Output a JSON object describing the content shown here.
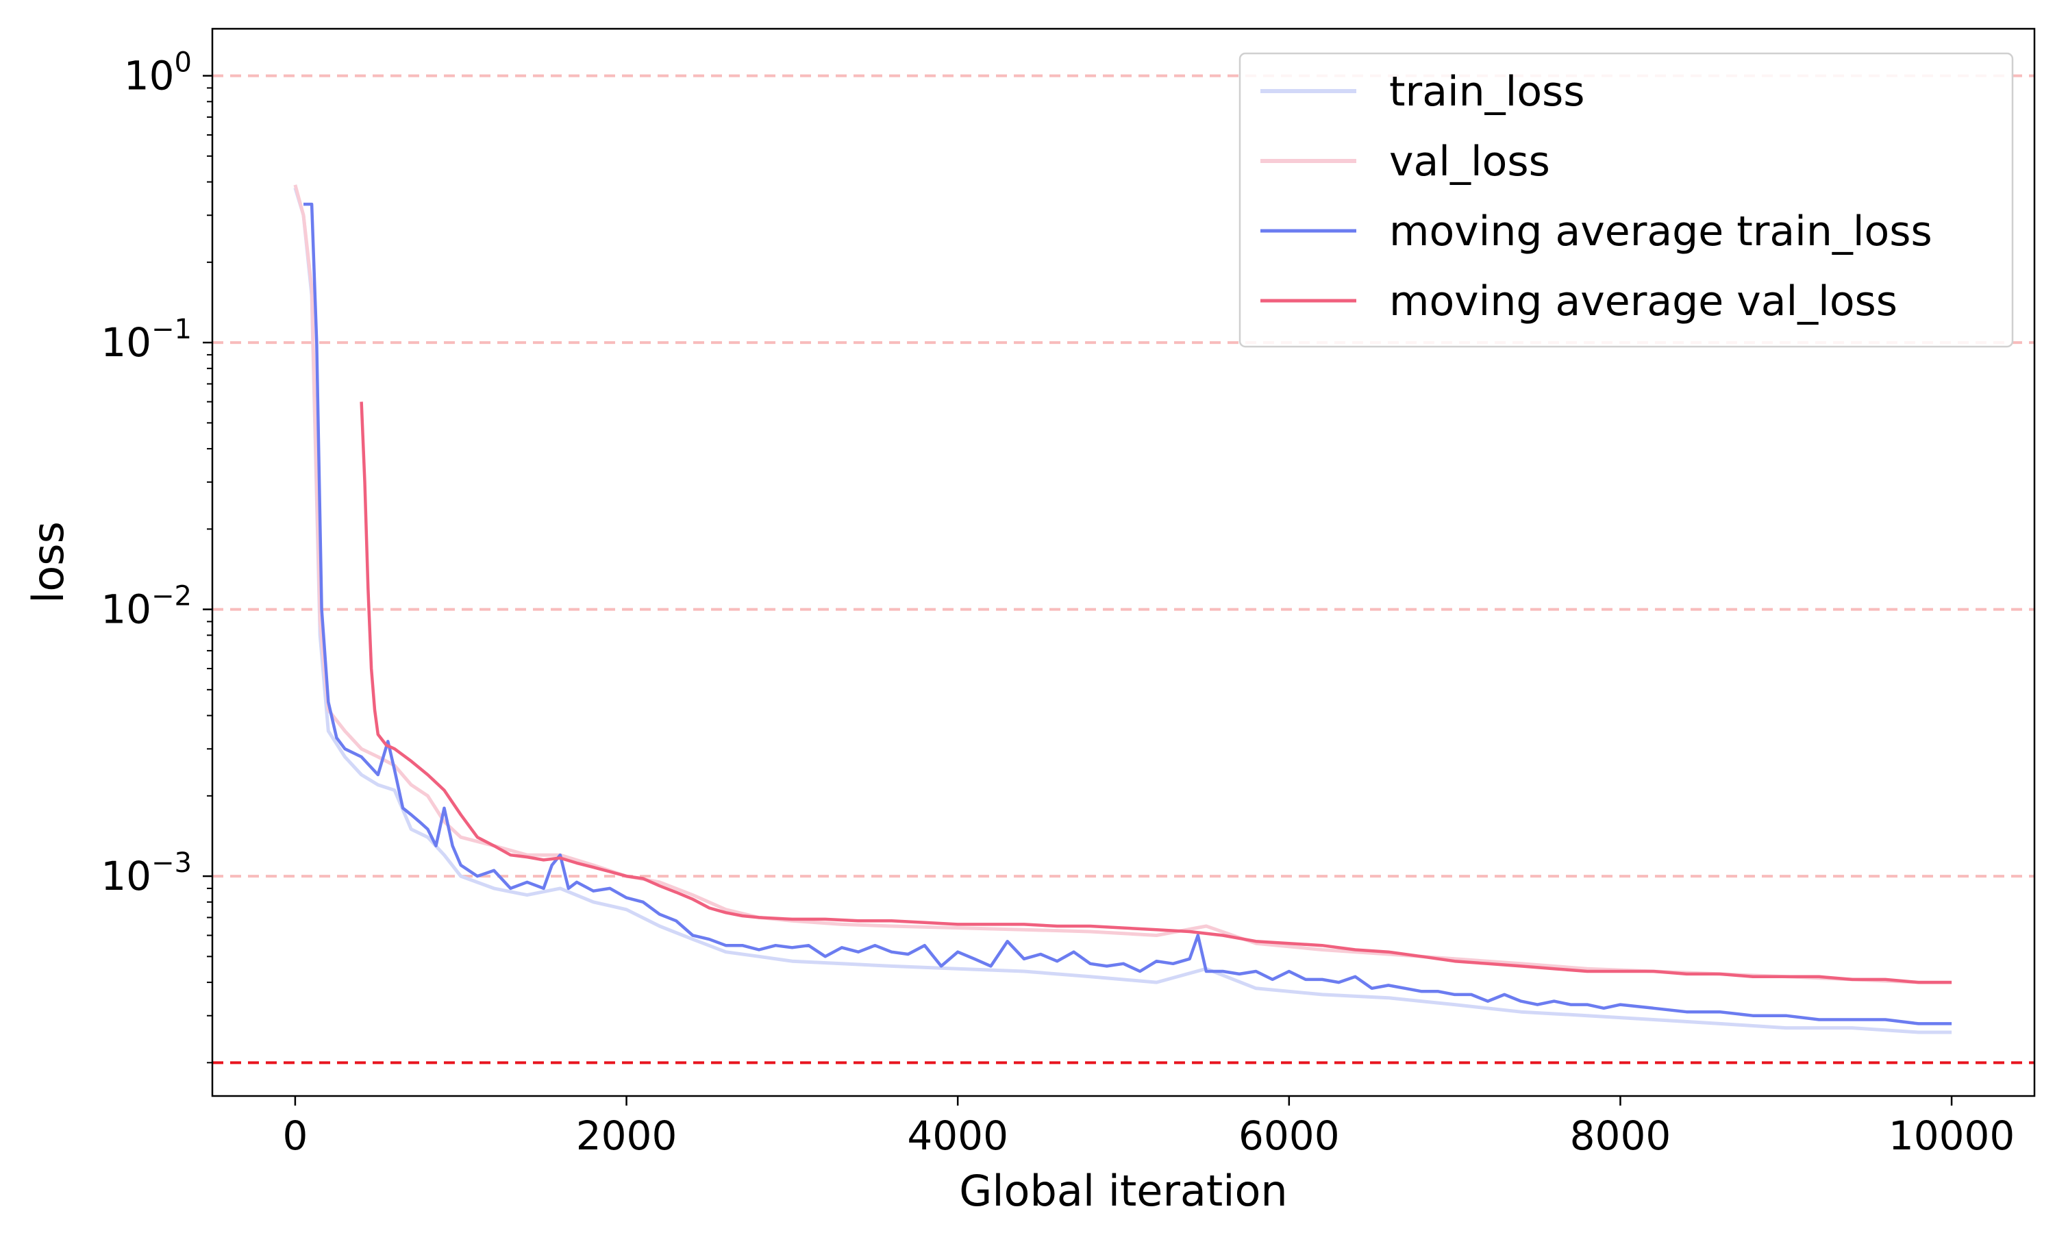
{
  "chart_data": {
    "type": "line",
    "xlabel": "Global iteration",
    "ylabel": "loss",
    "xlim": [
      -500,
      10500
    ],
    "ylim": [
      0.00015,
      1.5
    ],
    "yscale": "log",
    "x_ticks": [
      0,
      2000,
      4000,
      6000,
      8000,
      10000
    ],
    "x_tick_labels": [
      "0",
      "2000",
      "4000",
      "6000",
      "8000",
      "10000"
    ],
    "y_ticks": [
      {
        "value": 1,
        "base": "10",
        "exp": "0"
      },
      {
        "value": 0.1,
        "base": "10",
        "exp": "−1"
      },
      {
        "value": 0.01,
        "base": "10",
        "exp": "−2"
      },
      {
        "value": 0.001,
        "base": "10",
        "exp": "−3"
      }
    ],
    "grid": "horizontal dashed at decades",
    "reference_lines": [
      {
        "y": 1,
        "color": "#f8bcbc"
      },
      {
        "y": 0.1,
        "color": "#f8bcbc"
      },
      {
        "y": 0.01,
        "color": "#f8bcbc"
      },
      {
        "y": 0.001,
        "color": "#f8bcbc"
      },
      {
        "y": 0.0002,
        "color": "#e8141e"
      }
    ],
    "legend_position": "top-right",
    "series": [
      {
        "name": "train_loss",
        "color": "#d2d8f8",
        "kind": "raw",
        "x": [
          0,
          50,
          100,
          150,
          200,
          300,
          400,
          500,
          600,
          700,
          800,
          900,
          1000,
          1200,
          1400,
          1600,
          1800,
          2000,
          2200,
          2400,
          2600,
          2800,
          3000,
          3300,
          3600,
          4000,
          4400,
          4800,
          5200,
          5500,
          5800,
          6200,
          6600,
          7000,
          7400,
          7800,
          8200,
          8600,
          9000,
          9400,
          9800,
          10000
        ],
        "y": [
          0.38,
          0.3,
          0.15,
          0.008,
          0.0035,
          0.0028,
          0.0024,
          0.0022,
          0.0021,
          0.0015,
          0.0014,
          0.0012,
          0.001,
          0.0009,
          0.00085,
          0.0009,
          0.0008,
          0.00075,
          0.00065,
          0.00058,
          0.00052,
          0.0005,
          0.00048,
          0.00047,
          0.00046,
          0.00045,
          0.00044,
          0.00042,
          0.0004,
          0.00045,
          0.00038,
          0.00036,
          0.00035,
          0.00033,
          0.00031,
          0.0003,
          0.00029,
          0.00028,
          0.00027,
          0.00027,
          0.00026,
          0.00026
        ]
      },
      {
        "name": "val_loss",
        "color": "#f8ccd6",
        "kind": "raw",
        "x": [
          0,
          50,
          100,
          150,
          200,
          300,
          400,
          500,
          600,
          700,
          800,
          900,
          1000,
          1200,
          1400,
          1600,
          1800,
          2000,
          2200,
          2400,
          2600,
          2800,
          3000,
          3300,
          3600,
          4000,
          4400,
          4800,
          5200,
          5500,
          5800,
          6200,
          6600,
          7000,
          7400,
          7800,
          8200,
          8600,
          9000,
          9400,
          9800,
          10000
        ],
        "y": [
          0.39,
          0.3,
          0.16,
          0.009,
          0.0042,
          0.0035,
          0.003,
          0.0028,
          0.0026,
          0.0022,
          0.002,
          0.0016,
          0.0014,
          0.0013,
          0.0012,
          0.0012,
          0.0011,
          0.001,
          0.00095,
          0.00085,
          0.00075,
          0.0007,
          0.00068,
          0.00066,
          0.00065,
          0.00064,
          0.00063,
          0.00062,
          0.0006,
          0.00065,
          0.00056,
          0.00053,
          0.00051,
          0.00049,
          0.00047,
          0.00045,
          0.00044,
          0.00043,
          0.00042,
          0.00041,
          0.0004,
          0.0004
        ]
      },
      {
        "name": "moving average train_loss",
        "color": "#6b7cf0",
        "kind": "smoothed",
        "x": [
          50,
          100,
          130,
          160,
          200,
          250,
          300,
          400,
          500,
          560,
          600,
          650,
          700,
          750,
          800,
          850,
          900,
          950,
          1000,
          1100,
          1200,
          1300,
          1400,
          1500,
          1550,
          1600,
          1650,
          1700,
          1800,
          1900,
          2000,
          2100,
          2200,
          2300,
          2400,
          2500,
          2600,
          2700,
          2800,
          2900,
          3000,
          3100,
          3200,
          3300,
          3400,
          3500,
          3600,
          3700,
          3800,
          3900,
          4000,
          4100,
          4200,
          4300,
          4400,
          4500,
          4600,
          4700,
          4800,
          4900,
          5000,
          5100,
          5200,
          5300,
          5400,
          5450,
          5500,
          5600,
          5700,
          5800,
          5900,
          6000,
          6100,
          6200,
          6300,
          6400,
          6500,
          6600,
          6700,
          6800,
          6900,
          7000,
          7100,
          7200,
          7300,
          7400,
          7500,
          7600,
          7700,
          7800,
          7900,
          8000,
          8200,
          8400,
          8600,
          8800,
          9000,
          9200,
          9400,
          9600,
          9800,
          10000
        ],
        "y": [
          0.33,
          0.33,
          0.1,
          0.01,
          0.0045,
          0.0033,
          0.003,
          0.0028,
          0.0024,
          0.0032,
          0.0025,
          0.0018,
          0.0017,
          0.0016,
          0.0015,
          0.0013,
          0.0018,
          0.0013,
          0.0011,
          0.001,
          0.00105,
          0.0009,
          0.00095,
          0.0009,
          0.0011,
          0.0012,
          0.0009,
          0.00095,
          0.00088,
          0.0009,
          0.00083,
          0.0008,
          0.00072,
          0.00068,
          0.0006,
          0.00058,
          0.00055,
          0.00055,
          0.00053,
          0.00055,
          0.00054,
          0.00055,
          0.0005,
          0.00054,
          0.00052,
          0.00055,
          0.00052,
          0.00051,
          0.00055,
          0.00046,
          0.00052,
          0.00049,
          0.00046,
          0.00057,
          0.00049,
          0.00051,
          0.00048,
          0.00052,
          0.00047,
          0.00046,
          0.00047,
          0.00044,
          0.00048,
          0.00047,
          0.00049,
          0.0006,
          0.00044,
          0.00044,
          0.00043,
          0.00044,
          0.00041,
          0.00044,
          0.00041,
          0.00041,
          0.0004,
          0.00042,
          0.00038,
          0.00039,
          0.00038,
          0.00037,
          0.00037,
          0.00036,
          0.00036,
          0.00034,
          0.00036,
          0.00034,
          0.00033,
          0.00034,
          0.00033,
          0.00033,
          0.00032,
          0.00033,
          0.00032,
          0.00031,
          0.00031,
          0.0003,
          0.0003,
          0.00029,
          0.00029,
          0.00029,
          0.00028,
          0.00028
        ]
      },
      {
        "name": "moving average  val_loss",
        "color": "#f0607e",
        "kind": "smoothed",
        "x": [
          400,
          420,
          440,
          460,
          480,
          500,
          550,
          600,
          700,
          800,
          900,
          1000,
          1100,
          1200,
          1300,
          1400,
          1500,
          1600,
          1700,
          1800,
          1900,
          2000,
          2100,
          2200,
          2300,
          2400,
          2500,
          2600,
          2700,
          2800,
          3000,
          3200,
          3400,
          3600,
          3800,
          4000,
          4200,
          4400,
          4600,
          4800,
          5000,
          5200,
          5400,
          5600,
          5800,
          6000,
          6200,
          6400,
          6600,
          6800,
          7000,
          7200,
          7400,
          7600,
          7800,
          8000,
          8200,
          8400,
          8600,
          8800,
          9000,
          9200,
          9400,
          9600,
          9800,
          10000
        ],
        "y": [
          0.06,
          0.03,
          0.012,
          0.006,
          0.0042,
          0.0034,
          0.0031,
          0.003,
          0.0027,
          0.0024,
          0.0021,
          0.0017,
          0.0014,
          0.0013,
          0.0012,
          0.00118,
          0.00115,
          0.00117,
          0.00112,
          0.00108,
          0.00104,
          0.001,
          0.00098,
          0.00092,
          0.00087,
          0.00082,
          0.00076,
          0.00073,
          0.00071,
          0.0007,
          0.00069,
          0.00069,
          0.00068,
          0.00068,
          0.00067,
          0.00066,
          0.00066,
          0.00066,
          0.00065,
          0.00065,
          0.00064,
          0.00063,
          0.00062,
          0.0006,
          0.00057,
          0.00056,
          0.00055,
          0.00053,
          0.00052,
          0.0005,
          0.00048,
          0.00047,
          0.00046,
          0.00045,
          0.00044,
          0.00044,
          0.00044,
          0.00043,
          0.00043,
          0.00042,
          0.00042,
          0.00042,
          0.00041,
          0.00041,
          0.0004,
          0.0004
        ]
      }
    ]
  }
}
